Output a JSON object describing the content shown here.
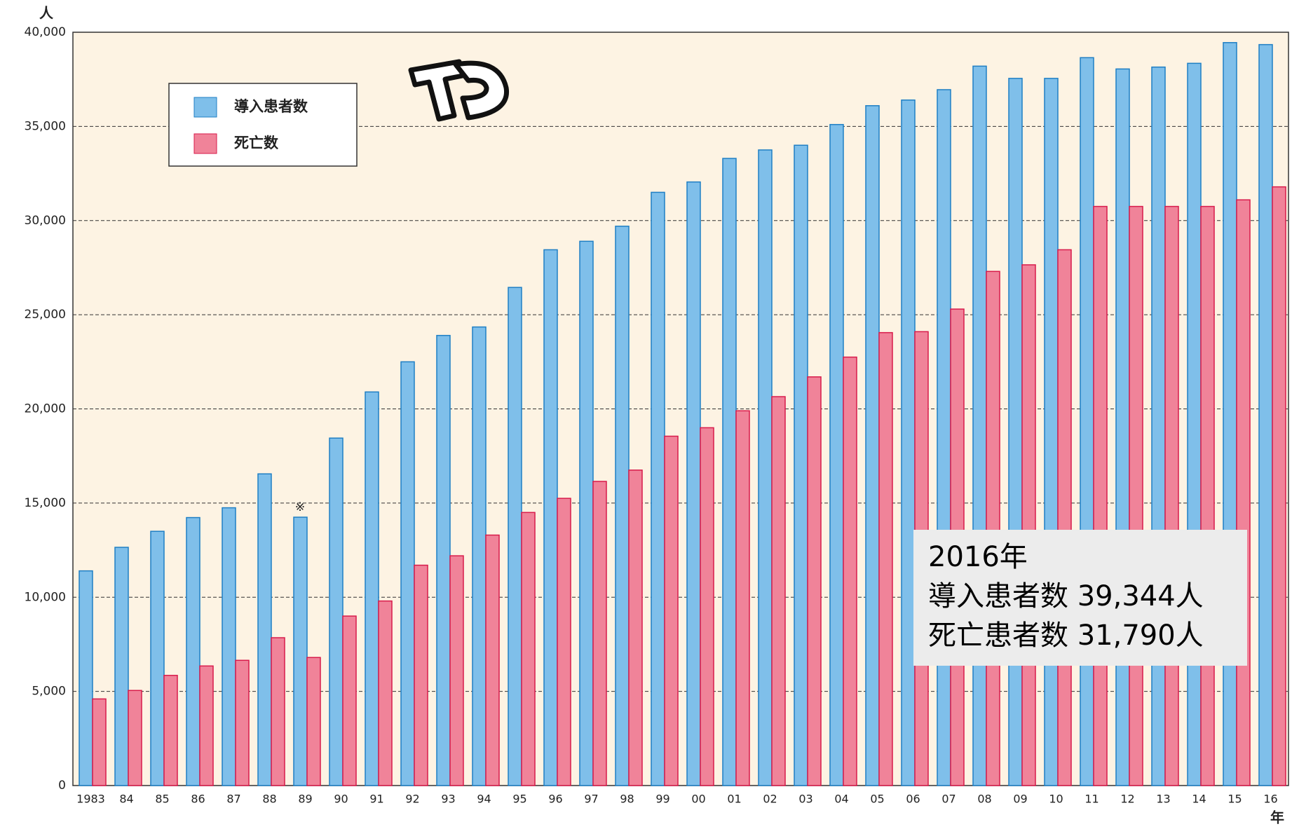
{
  "chart_data": {
    "type": "bar",
    "y_unit": "人",
    "x_unit": "年",
    "categories": [
      "1983",
      "84",
      "85",
      "86",
      "87",
      "88",
      "89",
      "90",
      "91",
      "92",
      "93",
      "94",
      "95",
      "96",
      "97",
      "98",
      "99",
      "00",
      "01",
      "02",
      "03",
      "04",
      "05",
      "06",
      "07",
      "08",
      "09",
      "10",
      "11",
      "12",
      "13",
      "14",
      "15",
      "16"
    ],
    "series": [
      {
        "name": "導入患者数",
        "color": "#7fbfea",
        "values": [
          11400,
          12650,
          13500,
          14230,
          14750,
          16550,
          14250,
          18450,
          20900,
          22500,
          23900,
          24350,
          26450,
          28450,
          28900,
          29700,
          31500,
          32050,
          33300,
          33750,
          34000,
          35100,
          36100,
          36400,
          36950,
          38200,
          37550,
          37550,
          38650,
          38050,
          38150,
          38350,
          39450,
          39344
        ]
      },
      {
        "name": "死亡数",
        "color": "#f08399",
        "values": [
          4600,
          5050,
          5850,
          6350,
          6650,
          7850,
          6800,
          9000,
          9800,
          11700,
          12200,
          13300,
          14500,
          15250,
          16150,
          16750,
          18550,
          19000,
          19900,
          20650,
          21700,
          22750,
          24050,
          24100,
          25300,
          27300,
          27650,
          28450,
          30750,
          30750,
          30750,
          30750,
          31100,
          31790
        ]
      }
    ],
    "ylim": [
      0,
      40000
    ],
    "yticks": [
      0,
      {
        "value": 5000,
        "label": "5,000"
      },
      {
        "value": 10000,
        "label": "10,000"
      },
      {
        "value": 15000,
        "label": "15,000"
      },
      {
        "value": 20000,
        "label": "20,000"
      },
      {
        "value": 25000,
        "label": "25,000"
      },
      {
        "value": 30000,
        "label": "30,000"
      },
      {
        "value": 35000,
        "label": "35,000"
      },
      {
        "value": 40000,
        "label": "40,000"
      }
    ],
    "grid": true,
    "note_mark": "※",
    "annotation": [
      "2016年",
      "導入患者数 39,344人",
      "死亡患者数 31,790人"
    ]
  }
}
